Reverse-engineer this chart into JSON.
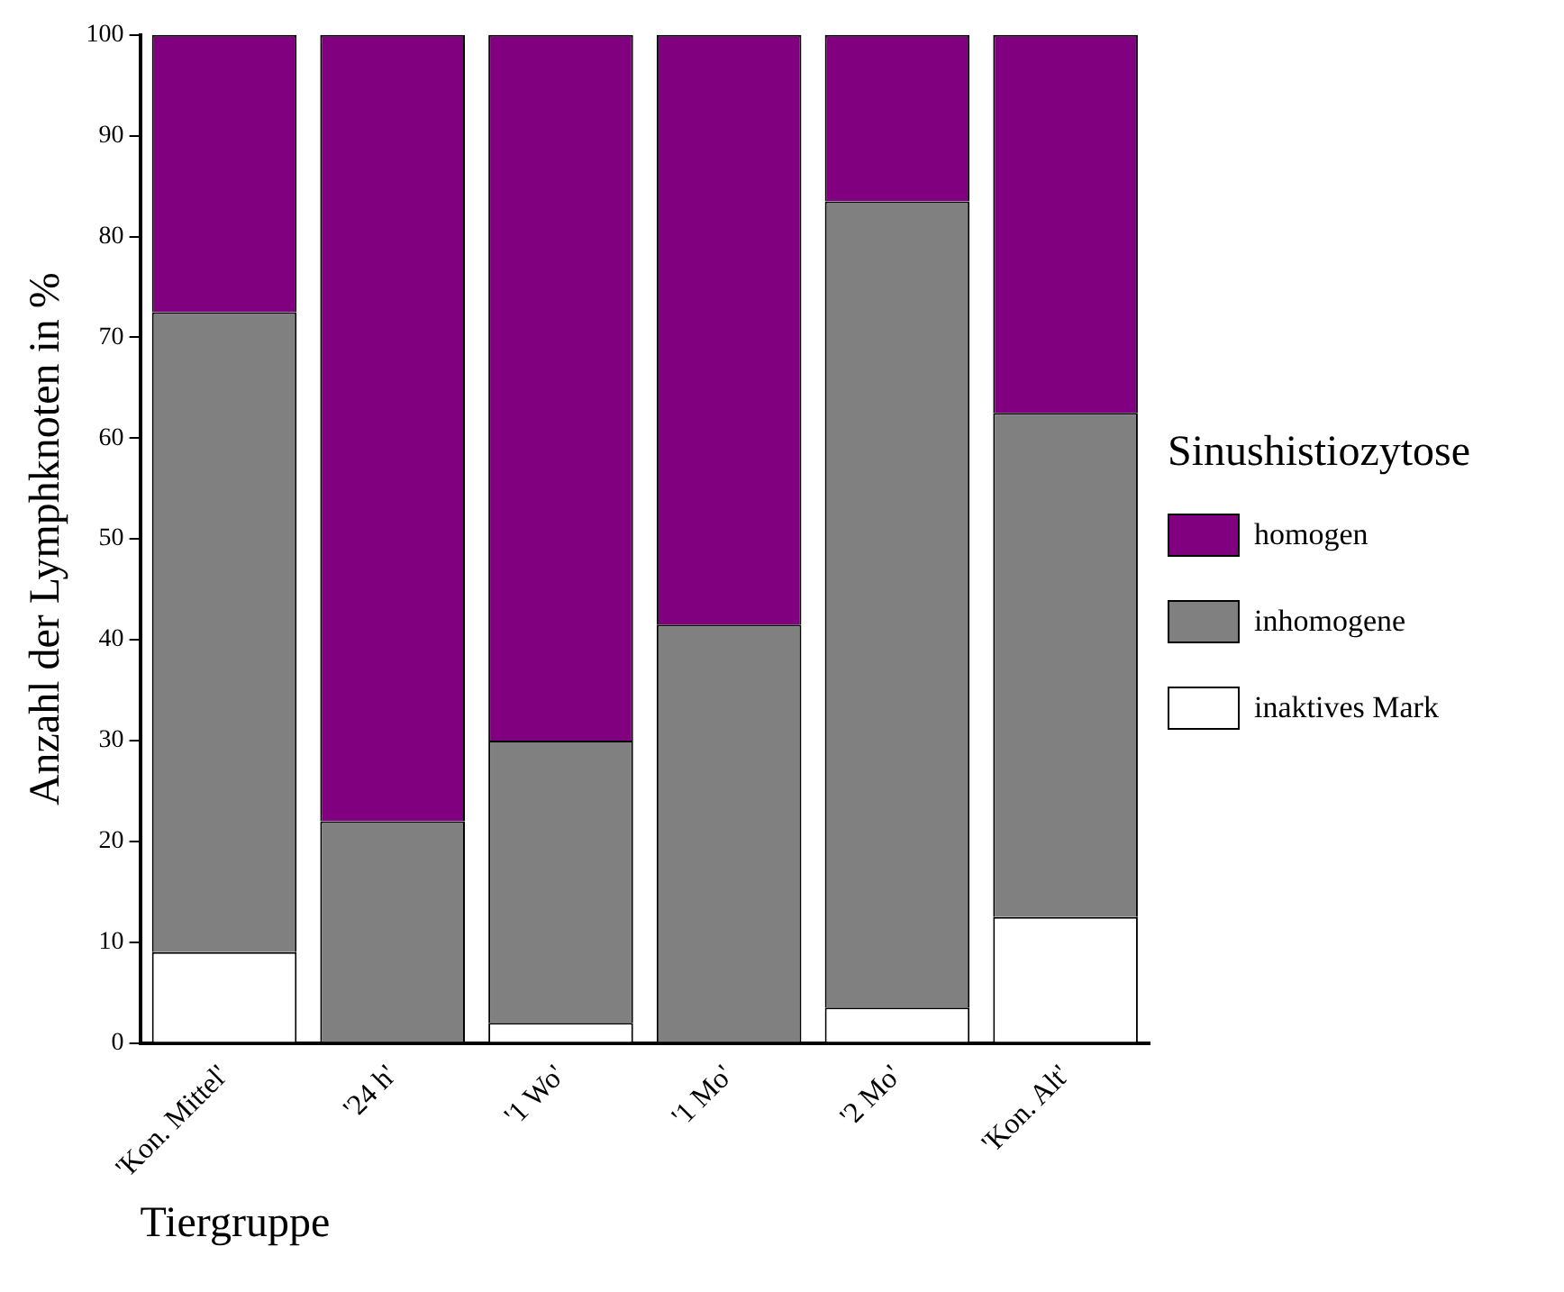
{
  "chart_data": {
    "type": "bar",
    "stacked": true,
    "xlabel": "Tiergruppe",
    "ylabel": "Anzahl der Lymphknoten in %",
    "legend_title": "Sinushistiozytose",
    "legend": "right",
    "categories": [
      "'Kon. Mittel'",
      "'24 h'",
      "'1 Wo'",
      "'1 Mo'",
      "'2 Mo'",
      "'Kon. Alt'"
    ],
    "series": [
      {
        "name": "inaktives Mark",
        "color": "#ffffff",
        "values": [
          9,
          0,
          2,
          0,
          3.5,
          12.5
        ]
      },
      {
        "name": "inhomogene",
        "color": "#808080",
        "values": [
          63.5,
          22,
          28,
          41.5,
          80,
          50
        ]
      },
      {
        "name": "homogen",
        "color": "#800080",
        "values": [
          27.5,
          78,
          70,
          58.5,
          16.5,
          37.5
        ]
      }
    ],
    "ylim": [
      0,
      100
    ],
    "yticks": [
      0,
      10,
      20,
      30,
      40,
      50,
      60,
      70,
      80,
      90,
      100
    ],
    "grid": false
  }
}
